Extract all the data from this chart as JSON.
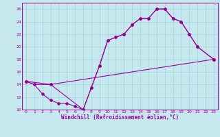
{
  "xlabel": "Windchill (Refroidissement éolien,°C)",
  "xlim": [
    -0.5,
    23.5
  ],
  "ylim": [
    10,
    27
  ],
  "xticks": [
    0,
    1,
    2,
    3,
    4,
    5,
    6,
    7,
    8,
    9,
    10,
    11,
    12,
    13,
    14,
    15,
    16,
    17,
    18,
    19,
    20,
    21,
    22,
    23
  ],
  "yticks": [
    10,
    12,
    14,
    16,
    18,
    20,
    22,
    24,
    26
  ],
  "bg_color": "#c5e8ef",
  "grid_color": "#aad4dc",
  "line_color": "#990099",
  "line1_x": [
    0,
    1,
    2,
    3,
    4,
    5,
    6,
    7,
    8,
    9,
    10,
    11,
    12,
    13,
    14,
    15,
    16,
    17,
    18,
    19,
    20,
    21,
    23
  ],
  "line1_y": [
    14.5,
    14.0,
    12.5,
    11.5,
    11.0,
    11.0,
    10.5,
    10.0,
    13.5,
    17.0,
    21.0,
    21.5,
    22.0,
    23.5,
    24.5,
    24.5,
    26.0,
    26.0,
    24.5,
    24.0,
    22.0,
    20.0,
    18.0
  ],
  "line2_x": [
    0,
    1,
    3,
    23
  ],
  "line2_y": [
    14.5,
    14.0,
    14.0,
    18.0
  ],
  "line3_x": [
    0,
    3,
    7,
    8,
    9,
    10,
    11,
    12,
    13,
    14,
    15,
    16,
    17,
    18,
    19,
    20,
    21,
    23
  ],
  "line3_y": [
    14.5,
    14.0,
    10.0,
    13.5,
    17.0,
    21.0,
    21.5,
    22.0,
    23.5,
    24.5,
    24.5,
    26.0,
    26.0,
    24.5,
    24.0,
    22.0,
    20.0,
    18.0
  ]
}
